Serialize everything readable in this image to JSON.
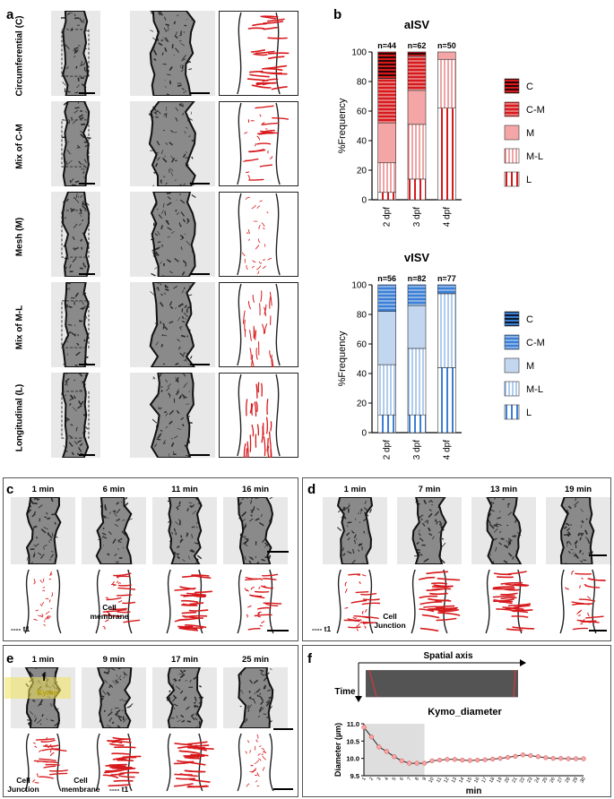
{
  "panel_labels": {
    "a": "a",
    "b": "b",
    "c": "c",
    "d": "d",
    "e": "e",
    "f": "f",
    "f_inset": "f"
  },
  "panel_a": {
    "rows": [
      {
        "key": "C",
        "label": "Circumferential (C)"
      },
      {
        "key": "CM",
        "label": "Mix of C-M"
      },
      {
        "key": "M",
        "label": "Mesh (M)"
      },
      {
        "key": "ML",
        "label": "Mix of M-L"
      },
      {
        "key": "L",
        "label": "Longitudinal (L)"
      }
    ]
  },
  "panel_c": {
    "times": [
      "1 min",
      "6 min",
      "11 min",
      "16 min"
    ],
    "legend_t1": "t1",
    "annot_cell_membrane": "Cell\nmembrane"
  },
  "panel_d": {
    "times": [
      "1 min",
      "7 min",
      "13 min",
      "19 min"
    ],
    "legend_t1": "t1",
    "annot_cell_junction": "Cell\nJunction"
  },
  "panel_e": {
    "times": [
      "1 min",
      "9 min",
      "17 min",
      "25 min"
    ],
    "kymo_label": "Kymo",
    "legend_t1": "t1",
    "annot_cell_junction": "Cell\nJunction",
    "annot_cell_membrane": "Cell\nmembrane"
  },
  "panel_f": {
    "spatial_axis": "Spatial axis",
    "time_axis": "Time"
  },
  "colors": {
    "red": "#d7191c",
    "pink": "#f4a6a6",
    "blue": "#3a7fd5",
    "lightblue": "#c3d6f0",
    "c_dark": "#111111"
  },
  "chart_data": [
    {
      "type": "bar",
      "stacked": true,
      "title": "aISV",
      "ylabel": "%Frequency",
      "ylim": [
        0,
        100
      ],
      "yticks": [
        0,
        20,
        40,
        60,
        80,
        100
      ],
      "categories": [
        "2 dpf",
        "3 dpf",
        "4 dpf"
      ],
      "n_labels": [
        "n=44",
        "n=62",
        "n=50"
      ],
      "series": [
        {
          "name": "L",
          "values": [
            5,
            14,
            62
          ]
        },
        {
          "name": "M-L",
          "values": [
            20,
            37,
            33
          ]
        },
        {
          "name": "M",
          "values": [
            27,
            23,
            5
          ]
        },
        {
          "name": "C-M",
          "values": [
            30,
            23,
            0
          ]
        },
        {
          "name": "C",
          "values": [
            18,
            3,
            0
          ]
        }
      ],
      "legend_order": [
        "C",
        "C-M",
        "M",
        "M-L",
        "L"
      ]
    },
    {
      "type": "bar",
      "stacked": true,
      "title": "vISV",
      "ylabel": "%Frequency",
      "ylim": [
        0,
        100
      ],
      "yticks": [
        0,
        20,
        40,
        60,
        80,
        100
      ],
      "categories": [
        "2 dpf",
        "3 dpf",
        "4 dpf"
      ],
      "n_labels": [
        "n=56",
        "n=82",
        "n=77"
      ],
      "series": [
        {
          "name": "L",
          "values": [
            12,
            12,
            44
          ]
        },
        {
          "name": "M-L",
          "values": [
            34,
            45,
            50
          ]
        },
        {
          "name": "M",
          "values": [
            36,
            29,
            0
          ]
        },
        {
          "name": "C-M",
          "values": [
            18,
            14,
            6
          ]
        },
        {
          "name": "C",
          "values": [
            0,
            0,
            0
          ]
        }
      ],
      "legend_order": [
        "C",
        "C-M",
        "M",
        "M-L",
        "L"
      ]
    },
    {
      "type": "line",
      "title": "Kymo_diameter",
      "xlabel": "min",
      "ylabel": "Diameter (µm)",
      "ylim": [
        9.5,
        11.0
      ],
      "yticks": [
        "9.5",
        "10.0",
        "10.5",
        "11.0"
      ],
      "x": [
        1,
        2,
        3,
        4,
        5,
        6,
        7,
        8,
        9,
        10,
        11,
        12,
        13,
        14,
        15,
        16,
        17,
        18,
        19,
        20,
        21,
        22,
        23,
        24,
        25,
        26,
        27,
        28,
        29,
        30
      ],
      "x_tick_labels": [
        "1",
        "2",
        "3",
        "4",
        "5",
        "6",
        "7",
        "8",
        "9",
        "10",
        "11",
        "12",
        "13",
        "14",
        "15",
        "16",
        "17",
        "18",
        "19",
        "20",
        "21",
        "22",
        "23",
        "24",
        "25",
        "26",
        "27",
        "28",
        "29",
        "30"
      ],
      "shaded_range": [
        1,
        9
      ],
      "values": [
        10.9,
        10.62,
        10.33,
        10.2,
        10.05,
        9.93,
        9.86,
        9.86,
        9.86,
        9.93,
        9.95,
        9.97,
        9.97,
        9.95,
        9.94,
        9.95,
        9.96,
        9.98,
        10.0,
        10.03,
        10.06,
        10.1,
        10.08,
        10.05,
        10.02,
        10.0,
        10.0,
        9.99,
        9.99,
        9.99
      ]
    }
  ]
}
